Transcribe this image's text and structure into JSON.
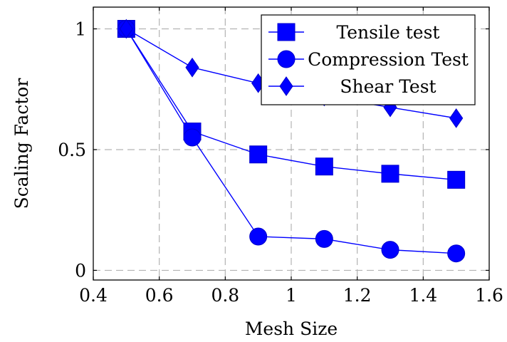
{
  "chart_data": {
    "type": "line",
    "xlabel": "Mesh Size",
    "ylabel": "Scaling Factor",
    "xlim": [
      0.4,
      1.6
    ],
    "ylim": [
      -0.04,
      1.09
    ],
    "xticks": [
      "0.4",
      "0.6",
      "0.8",
      "1",
      "1.2",
      "1.4",
      "1.6"
    ],
    "yticks": [
      "0",
      "0.5",
      "1"
    ],
    "grid": true,
    "legend_position": "top-right",
    "series": [
      {
        "name": "Tensile test",
        "marker": "square",
        "color": "#0000ff",
        "x": [
          0.5,
          0.7,
          0.9,
          1.1,
          1.3,
          1.5
        ],
        "y": [
          1.0,
          0.575,
          0.48,
          0.43,
          0.4,
          0.375
        ]
      },
      {
        "name": "Compression Test",
        "marker": "circle",
        "color": "#0000ff",
        "x": [
          0.5,
          0.7,
          0.9,
          1.1,
          1.3,
          1.5
        ],
        "y": [
          1.0,
          0.55,
          0.14,
          0.13,
          0.085,
          0.07
        ]
      },
      {
        "name": "Shear Test",
        "marker": "diamond",
        "color": "#0000ff",
        "x": [
          0.5,
          0.7,
          0.9,
          1.1,
          1.3,
          1.5
        ],
        "y": [
          1.0,
          0.84,
          0.775,
          0.72,
          0.675,
          0.63
        ]
      }
    ]
  }
}
